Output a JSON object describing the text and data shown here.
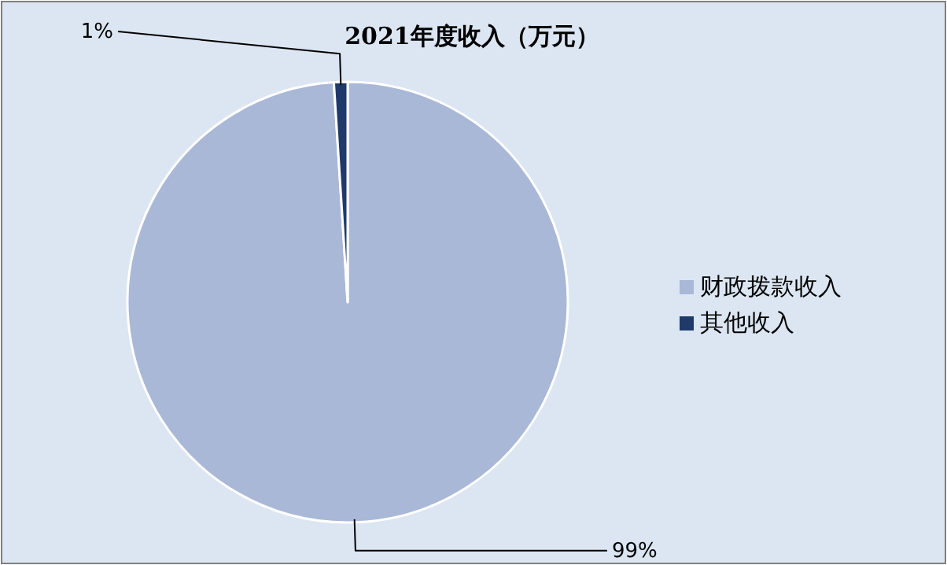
{
  "chart_data": {
    "type": "pie",
    "title": "2021年度收入（万元）",
    "categories": [
      "财政拨款收入",
      "其他收入"
    ],
    "values": [
      99,
      1
    ],
    "colors": [
      "#a9b8d7",
      "#1f3a68"
    ],
    "value_labels": [
      "99%",
      "1%"
    ],
    "legend": "right"
  }
}
